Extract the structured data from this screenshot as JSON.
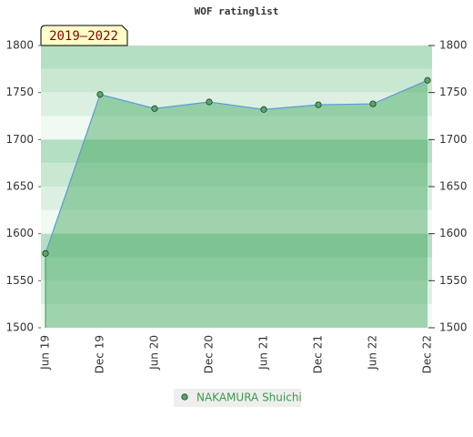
{
  "chart_data": {
    "type": "area",
    "title": "WOF ratinglist",
    "subtitle": "2019–2022",
    "categories": [
      "Jun 19",
      "Dec 19",
      "Jun 20",
      "Dec 20",
      "Jun 21",
      "Dec 21",
      "Jun 22",
      "Dec 22"
    ],
    "series": [
      {
        "name": "NAKAMURA Shuichi",
        "color": "#5b9bd5",
        "marker_color": "#5aa56a",
        "values": [
          1579,
          1748,
          1733,
          1740,
          1732,
          1737,
          1738,
          1763
        ]
      }
    ],
    "ylim": [
      1500,
      1800
    ],
    "yticks": [
      1500,
      1550,
      1600,
      1650,
      1700,
      1750,
      1800
    ],
    "y2lim": [
      1500,
      1800
    ],
    "y2ticks": [
      1500,
      1550,
      1600,
      1650,
      1700,
      1750,
      1800
    ],
    "legend": "bottom"
  }
}
